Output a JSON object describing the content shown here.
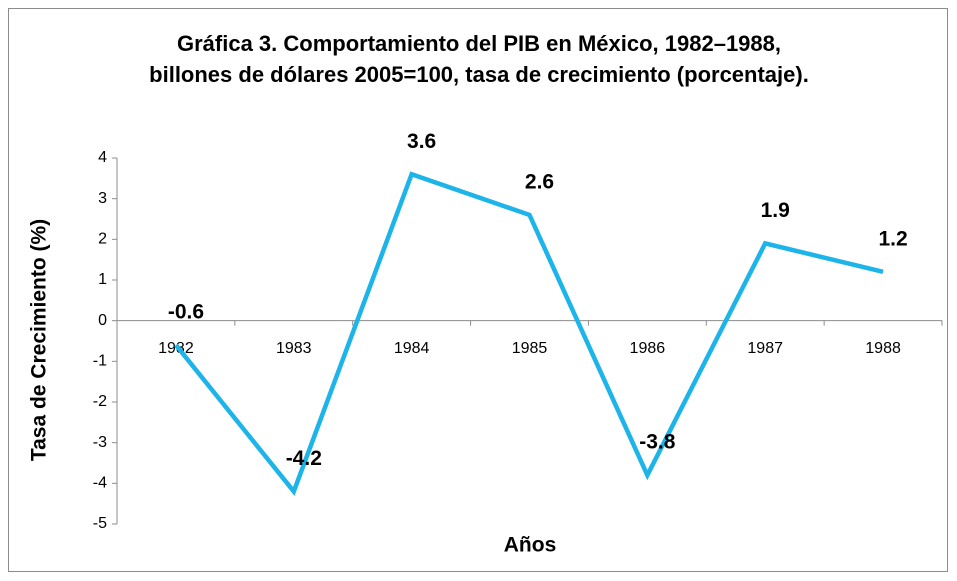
{
  "chart_data": {
    "type": "line",
    "title": "Gráfica 3. Comportamiento del PIB en México, 1982–1988, billones de dólares 2005=100, tasa de crecimiento (porcentaje).",
    "x_label": "Años",
    "y_label": "Tasa de Crecimiento (%)",
    "categories": [
      "1982",
      "1983",
      "1984",
      "1985",
      "1986",
      "1987",
      "1988"
    ],
    "values": [
      -0.6,
      -4.2,
      3.6,
      2.6,
      -3.8,
      1.9,
      1.2
    ],
    "color": "#1db4e9",
    "ylim": [
      -5,
      4
    ],
    "yticks": [
      4,
      3,
      2,
      1,
      0,
      -1,
      -2,
      -3,
      -4,
      -5
    ],
    "grid": false
  }
}
